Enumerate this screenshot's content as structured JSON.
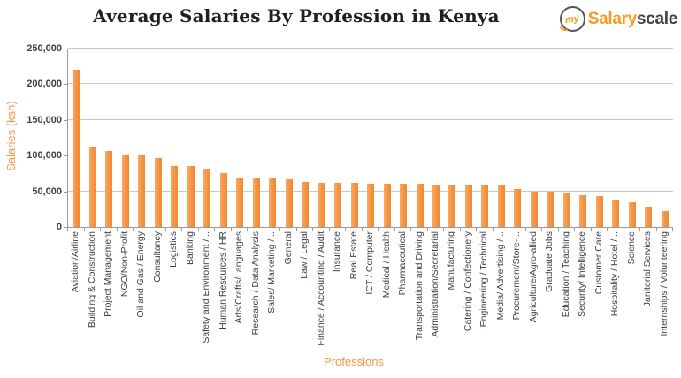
{
  "header": {
    "title": "Average Salaries By Profession in Kenya",
    "logo": {
      "prefix": "my",
      "brand_orange": "Salary",
      "brand_dark": "scale"
    }
  },
  "chart_data": {
    "type": "bar",
    "title": "Average Salaries By Profession in Kenya",
    "xlabel": "Professions",
    "ylabel": "Salaries (ksh)",
    "ylim": [
      0,
      250000
    ],
    "ytick_interval": 50000,
    "ytick_labels": [
      "0",
      "50,000",
      "100,000",
      "150,000",
      "200,000",
      "250,000"
    ],
    "grid": true,
    "legend": false,
    "bar_color": "#F79646",
    "categories": [
      "Aviation/Airline",
      "Building & Construction",
      "Project Management",
      "NGO/Non-Profit",
      "Oil and Gas / Energy",
      "Consultancy",
      "Logistics",
      "Banking",
      "Safety and Environment /...",
      "Human Resources / HR",
      "Arts/Crafts/Languages",
      "Research / Data Analysis",
      "Sales/ Marketing /...",
      "General",
      "Law / Legal",
      "Finance / Accounting / Audit",
      "Insurance",
      "Real Estate",
      "ICT / Computer",
      "Medical / Health",
      "Pharmaceutical",
      "Transportation and Driving",
      "Administration/Secretarial",
      "Manufacturing",
      "Catering / Confectionery",
      "Engineering / Technical",
      "Media/ Advertising /...",
      "Procurement/Store-...",
      "Agriculture/Agro-allied",
      "Graduate Jobs",
      "Education / Teaching",
      "Security/ Intelligence",
      "Customer Care",
      "Hospitality / Hotel /...",
      "Science",
      "Janitorial Services",
      "Internships / Volunteering"
    ],
    "values": [
      220000,
      112000,
      107000,
      101000,
      100000,
      96000,
      86000,
      85000,
      82000,
      75000,
      68000,
      68000,
      68000,
      67000,
      63000,
      62000,
      62000,
      62000,
      61000,
      61000,
      61000,
      61000,
      60000,
      60000,
      60000,
      59000,
      58000,
      53000,
      49000,
      49000,
      48000,
      45000,
      43000,
      39000,
      35000,
      29000,
      22000
    ]
  }
}
